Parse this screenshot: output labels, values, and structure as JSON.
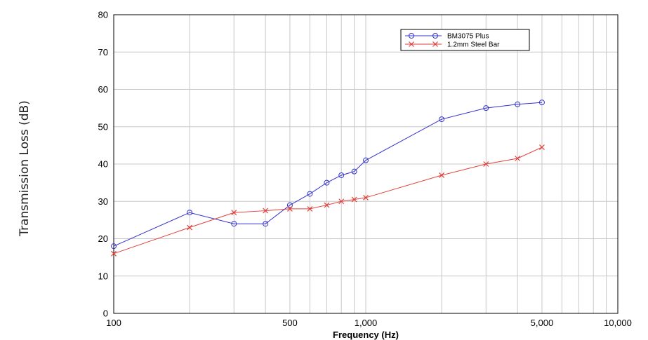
{
  "chart_data": {
    "type": "line",
    "xlabel": "Frequency (Hz)",
    "ylabel": "Transmission Loss (dB)",
    "xscale": "log",
    "xlim": [
      100,
      10000
    ],
    "ylim": [
      0,
      80
    ],
    "grid": true,
    "legend_position": "top-right",
    "x_ticks": [
      {
        "value": 100,
        "label": "100"
      },
      {
        "value": 500,
        "label": "500"
      },
      {
        "value": 1000,
        "label": "1,000"
      },
      {
        "value": 5000,
        "label": "5,000"
      },
      {
        "value": 10000,
        "label": "10,000"
      }
    ],
    "y_ticks": [
      {
        "value": 0,
        "label": "0"
      },
      {
        "value": 10,
        "label": "10"
      },
      {
        "value": 20,
        "label": "20"
      },
      {
        "value": 30,
        "label": "30"
      },
      {
        "value": 40,
        "label": "40"
      },
      {
        "value": 50,
        "label": "50"
      },
      {
        "value": 60,
        "label": "60"
      },
      {
        "value": 70,
        "label": "70"
      },
      {
        "value": 80,
        "label": "80"
      }
    ],
    "series": [
      {
        "name": "BM3075  Plus",
        "color": "#3333cc",
        "marker": "circle",
        "x": [
          100,
          200,
          300,
          400,
          500,
          600,
          700,
          800,
          900,
          1000,
          2000,
          3000,
          4000,
          5000
        ],
        "y": [
          18,
          27,
          24,
          24,
          29,
          32,
          35,
          37,
          38,
          41,
          52,
          55,
          56,
          56.5
        ]
      },
      {
        "name": "1.2mm Steel Bar",
        "color": "#e0403a",
        "marker": "x",
        "x": [
          100,
          200,
          300,
          400,
          500,
          600,
          700,
          800,
          900,
          1000,
          2000,
          3000,
          4000,
          5000
        ],
        "y": [
          16,
          23,
          27,
          27.5,
          28,
          28,
          29,
          30,
          30.5,
          31,
          37,
          40,
          41.5,
          44.5
        ]
      }
    ]
  }
}
